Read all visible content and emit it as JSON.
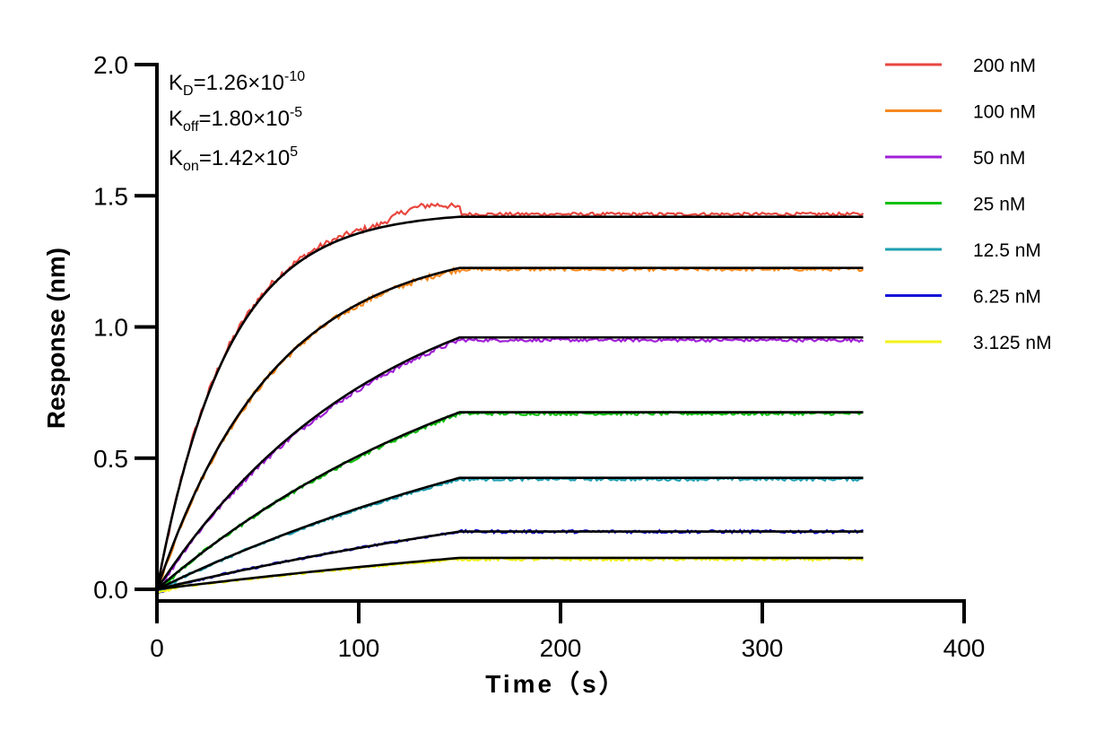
{
  "chart_data": {
    "type": "line",
    "title": "",
    "xlabel": "Time（s）",
    "ylabel": "Response (nm)",
    "xlim": [
      0,
      400
    ],
    "ylim": [
      0,
      2.0
    ],
    "x_ticks": [
      "0",
      "100",
      "200",
      "300",
      "400"
    ],
    "y_ticks": [
      "0.0",
      "0.5",
      "1.0",
      "1.5",
      "2.0"
    ],
    "legend_position": "right",
    "grid": false,
    "association_end": 150,
    "dissociation_end": 350,
    "kinetics": {
      "kd": {
        "label": "K",
        "sub": "D",
        "text": "=1.26×10",
        "sup": "-10"
      },
      "koff": {
        "label": "K",
        "sub": "off",
        "text": "=1.80×10",
        "sup": "-5"
      },
      "kon": {
        "label": "K",
        "sub": "on",
        "text": "=1.42×10",
        "sup": "5"
      }
    },
    "fit_color": "#000000",
    "series": [
      {
        "name": "200 nM",
        "color": "#e8473f",
        "plateau": 1.42,
        "tau": 35,
        "plateau_obs": 1.43
      },
      {
        "name": "100 nM",
        "color": "#f5891f",
        "plateau": 1.225,
        "tau": 58,
        "plateau_obs": 1.22
      },
      {
        "name": "50 nM",
        "color": "#a020d6",
        "plateau": 0.96,
        "tau": 110,
        "plateau_obs": 0.95
      },
      {
        "name": "25 nM",
        "color": "#11c011",
        "plateau": 0.675,
        "tau": 180,
        "plateau_obs": 0.67
      },
      {
        "name": "12.5 nM",
        "color": "#1e9fb0",
        "plateau": 0.425,
        "tau": 260,
        "plateau_obs": 0.42
      },
      {
        "name": "6.25 nM",
        "color": "#1414d9",
        "plateau": 0.22,
        "tau": 330,
        "plateau_obs": 0.22
      },
      {
        "name": "3.125 nM",
        "color": "#f2f21a",
        "plateau": 0.12,
        "tau": 400,
        "plateau_obs": 0.115
      }
    ]
  }
}
